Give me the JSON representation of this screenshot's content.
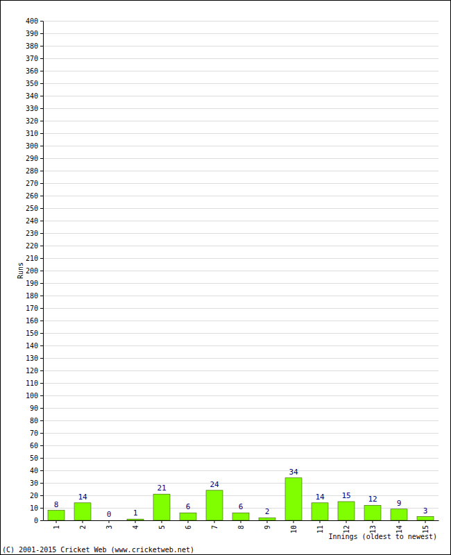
{
  "chart_data": {
    "type": "bar",
    "categories": [
      "1",
      "2",
      "3",
      "4",
      "5",
      "6",
      "7",
      "8",
      "9",
      "10",
      "11",
      "12",
      "13",
      "14",
      "15"
    ],
    "values": [
      8,
      14,
      0,
      1,
      21,
      6,
      24,
      6,
      2,
      34,
      14,
      15,
      12,
      9,
      3
    ],
    "color": "#80ff00",
    "y_label": "Runs",
    "x_label": "Innings (oldest to newest)",
    "annotations": [
      "(C) 2001-2015 Cricket Web (www.cricketweb.net)"
    ],
    "ylim": [
      0,
      400
    ],
    "yticks": [
      0,
      10,
      20,
      30,
      40,
      50,
      60,
      70,
      80,
      90,
      100,
      110,
      120,
      130,
      140,
      150,
      160,
      170,
      180,
      190,
      200,
      210,
      220,
      230,
      240,
      250,
      260,
      270,
      280,
      290,
      300,
      310,
      320,
      330,
      340,
      350,
      360,
      370,
      380,
      390,
      400
    ],
    "grid": true,
    "data_labels": true
  }
}
